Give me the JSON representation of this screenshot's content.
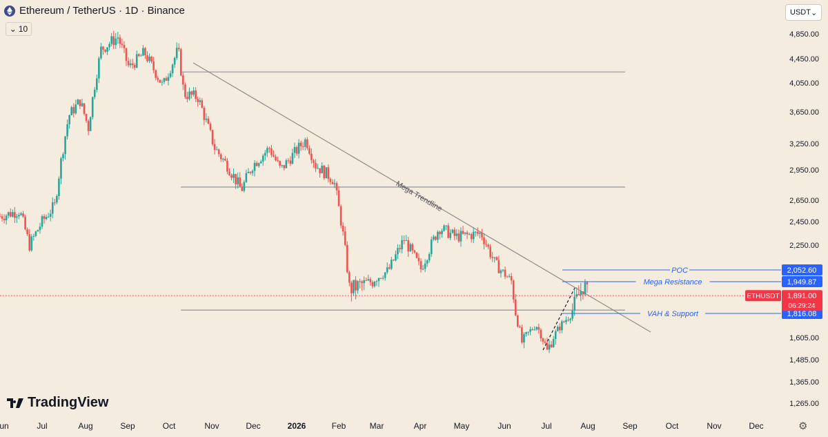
{
  "header": {
    "title": "Ethereum / TetherUS · 1D · Binance",
    "indicator_label": "10",
    "currency": "USDT"
  },
  "logo_text": "TradingView",
  "colors": {
    "background": "#f5ece0",
    "up": "#26a69a",
    "down": "#ef5350",
    "blue_label": "#2962ff",
    "red_label": "#f23645",
    "level_line": "#9b9b9b"
  },
  "chart_data": {
    "type": "candlestick",
    "symbol": "ETHUSDT",
    "y_ticks": [
      4850,
      4450,
      4050,
      3650,
      3250,
      2950,
      2650,
      2450,
      2250,
      1605,
      1485,
      1365,
      1265
    ],
    "y_tick_labels": [
      "4,850.00",
      "4,450.00",
      "4,050.00",
      "3,650.00",
      "3,250.00",
      "2,950.00",
      "2,650.00",
      "2,450.00",
      "2,250.00",
      "1,605.00",
      "1,485.00",
      "1,365.00",
      "1,265.00"
    ],
    "x_labels": [
      "Jun",
      "Jul",
      "Aug",
      "Sep",
      "Oct",
      "Nov",
      "Dec",
      "2026",
      "Feb",
      "Mar",
      "Apr",
      "May",
      "Jun",
      "Jul",
      "Aug",
      "Sep",
      "Oct",
      "Nov",
      "Dec"
    ],
    "horizontal_levels": [
      4230,
      2780,
      1830
    ],
    "price_markers": [
      {
        "label": "POC",
        "value": 2052.6,
        "text": "2,052.60"
      },
      {
        "label": "Mega Resistance",
        "value": 1949.87,
        "text": "1,949.87"
      },
      {
        "label": "VAH & Support",
        "value": 1816.08,
        "text": "1,816.08"
      }
    ],
    "current": {
      "symbol": "ETHUSDT",
      "value": 1891.0,
      "text": "1,891.00",
      "countdown": "06:29:24"
    },
    "trendline_label": "Mega Trendline",
    "close_path": [
      [
        "2025-06-01",
        2500
      ],
      [
        "2025-06-15",
        2550
      ],
      [
        "2025-06-22",
        2250
      ],
      [
        "2025-07-01",
        2450
      ],
      [
        "2025-07-10",
        2600
      ],
      [
        "2025-07-20",
        3600
      ],
      [
        "2025-07-28",
        3800
      ],
      [
        "2025-08-03",
        3450
      ],
      [
        "2025-08-12",
        4600
      ],
      [
        "2025-08-24",
        4800
      ],
      [
        "2025-09-01",
        4300
      ],
      [
        "2025-09-12",
        4550
      ],
      [
        "2025-09-25",
        4000
      ],
      [
        "2025-10-06",
        4600
      ],
      [
        "2025-10-10",
        3900
      ],
      [
        "2025-10-20",
        3850
      ],
      [
        "2025-11-01",
        3200
      ],
      [
        "2025-11-10",
        3000
      ],
      [
        "2025-11-20",
        2750
      ],
      [
        "2025-11-28",
        3000
      ],
      [
        "2025-12-10",
        3200
      ],
      [
        "2025-12-18",
        2950
      ],
      [
        "2026-01-05",
        3300
      ],
      [
        "2026-01-12",
        3000
      ],
      [
        "2026-01-25",
        2850
      ],
      [
        "2026-02-01",
        2300
      ],
      [
        "2026-02-05",
        1920
      ],
      [
        "2026-02-20",
        1950
      ],
      [
        "2026-03-05",
        2050
      ],
      [
        "2026-03-16",
        2300
      ],
      [
        "2026-03-28",
        2060
      ],
      [
        "2026-04-10",
        2400
      ],
      [
        "2026-04-22",
        2320
      ],
      [
        "2026-05-10",
        2350
      ],
      [
        "2026-05-20",
        2100
      ],
      [
        "2026-06-01",
        1950
      ],
      [
        "2026-06-08",
        1580
      ],
      [
        "2026-06-18",
        1720
      ],
      [
        "2026-06-26",
        1530
      ],
      [
        "2026-07-05",
        1700
      ],
      [
        "2026-07-14",
        1830
      ],
      [
        "2026-07-22",
        1940
      ],
      [
        "2026-07-25",
        1891
      ]
    ]
  }
}
